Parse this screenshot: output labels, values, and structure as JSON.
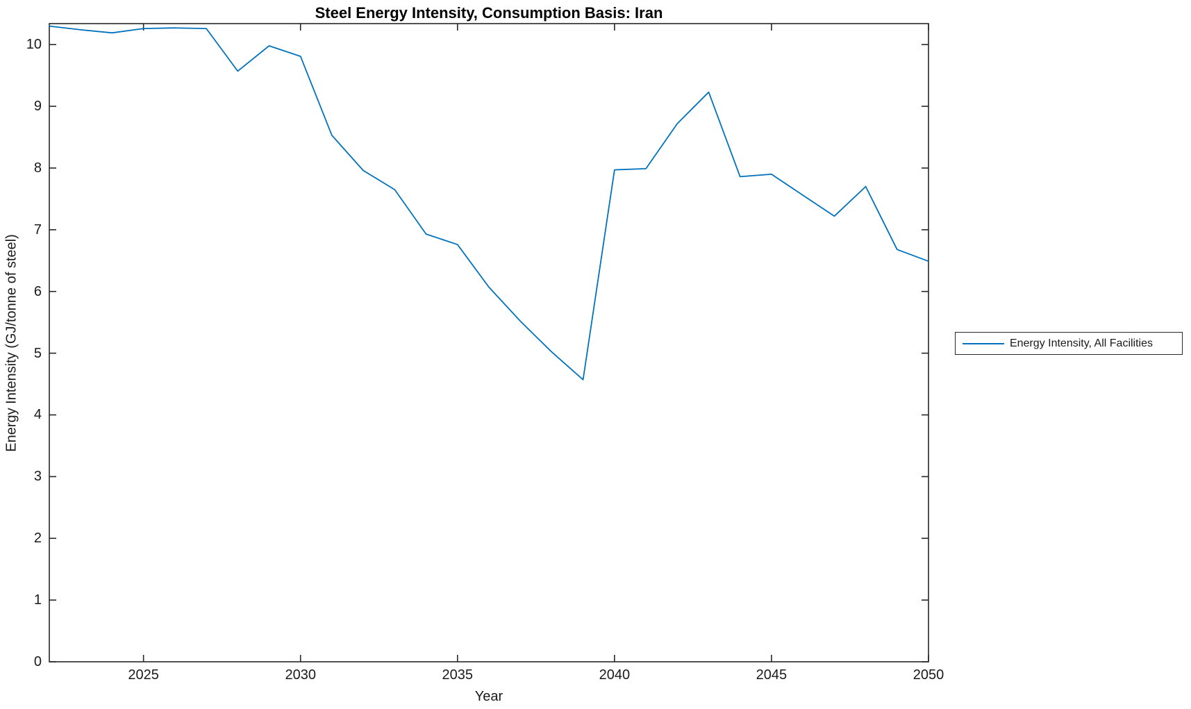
{
  "window": {
    "background": "#ffffff"
  },
  "chart_data": {
    "type": "line",
    "title": "Steel Energy Intensity, Consumption Basis: Iran",
    "xlabel": "Year",
    "ylabel": "Energy Intensity (GJ/tonne of steel)",
    "xlim": [
      2022,
      2050
    ],
    "ylim": [
      0,
      10.34
    ],
    "xticks": [
      2025,
      2030,
      2035,
      2040,
      2045,
      2050
    ],
    "yticks": [
      0,
      1,
      2,
      3,
      4,
      5,
      6,
      7,
      8,
      9,
      10
    ],
    "grid": false,
    "tick_style": "inward-mirrored-box",
    "axis_color": "#262626",
    "text_color": "#1a1a1a",
    "legend": {
      "position": "outside-right",
      "entries": [
        "Energy Intensity, All Facilities"
      ]
    },
    "x": [
      2022,
      2023,
      2024,
      2025,
      2026,
      2027,
      2028,
      2029,
      2030,
      2031,
      2032,
      2033,
      2034,
      2035,
      2036,
      2037,
      2038,
      2039,
      2040,
      2041,
      2042,
      2043,
      2044,
      2045,
      2046,
      2047,
      2048,
      2049,
      2050
    ],
    "series": [
      {
        "name": "Energy Intensity, All Facilities",
        "color": "#0072bd",
        "values": [
          10.3,
          10.24,
          10.19,
          10.26,
          10.27,
          10.26,
          9.57,
          9.98,
          9.81,
          8.53,
          7.96,
          7.65,
          6.93,
          6.76,
          6.07,
          5.52,
          5.02,
          4.57,
          7.97,
          7.99,
          8.72,
          9.23,
          7.86,
          7.9,
          7.56,
          7.22,
          7.7,
          6.68,
          6.49
        ]
      }
    ]
  }
}
